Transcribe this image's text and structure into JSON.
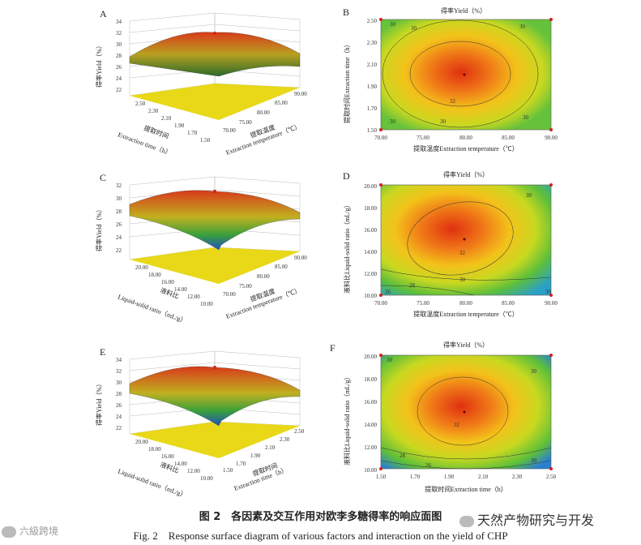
{
  "panels": {
    "A": {
      "label": "A",
      "z_label": "得率Yield（%）",
      "z_ticks": [
        "34",
        "32",
        "30",
        "28",
        "26",
        "24",
        "22"
      ],
      "left_ticks": [
        "2.50",
        "2.30",
        "2.10",
        "1.90",
        "1.70",
        "1.50"
      ],
      "right_ticks": [
        "70.00",
        "75.00",
        "80.00",
        "85.00",
        "90.00"
      ],
      "left_title_cn": "提取时间",
      "left_title_en": "Extraction time（h）",
      "right_title_cn": "提取温度",
      "right_title_en": "Extraction temperature（℃）"
    },
    "B": {
      "label": "B",
      "title": "得率Yield（%）",
      "y_title": "提取时间Extraction time（h）",
      "x_title": "提取温度Extraction temperature（℃）",
      "x_ticks": [
        "70.00",
        "75.00",
        "80.00",
        "85.00",
        "90.00"
      ],
      "y_ticks": [
        "2.50",
        "2.30",
        "2.10",
        "1.90",
        "1.70",
        "1.50"
      ],
      "contour_labels": [
        "30",
        "30",
        "30",
        "30",
        "32",
        "30",
        "30"
      ]
    },
    "C": {
      "label": "C",
      "z_label": "得率Yield（%）",
      "z_ticks": [
        "32",
        "30",
        "28",
        "26",
        "24",
        "22"
      ],
      "left_ticks": [
        "20.00",
        "18.00",
        "16.00",
        "14.00",
        "12.00",
        "10.00"
      ],
      "right_ticks": [
        "70.00",
        "75.00",
        "80.00",
        "85.00",
        "90.00"
      ],
      "left_title_cn": "液料比",
      "left_title_en": "Liquid-solid ratio（mL/g）",
      "right_title_cn": "提取温度",
      "right_title_en": "Extraction temperature（℃）"
    },
    "D": {
      "label": "D",
      "title": "得率Yield（%）",
      "y_title": "液料比Liquid-solid ratio（mL/g）",
      "x_title": "提取温度Extraction temperature（℃）",
      "x_ticks": [
        "70.00",
        "75.00",
        "80.00",
        "85.00",
        "90.00"
      ],
      "y_ticks": [
        "20.00",
        "18.00",
        "16.00",
        "14.00",
        "12.00",
        "10.00"
      ],
      "contour_labels": [
        "30",
        "32",
        "28",
        "30",
        "26",
        "30"
      ]
    },
    "E": {
      "label": "E",
      "z_label": "得率Yield（%）",
      "z_ticks": [
        "34",
        "32",
        "30",
        "28",
        "26",
        "24",
        "22"
      ],
      "left_ticks": [
        "20.00",
        "18.00",
        "16.00",
        "14.00",
        "12.00",
        "10.00"
      ],
      "right_ticks": [
        "1.50",
        "1.70",
        "1.90",
        "2.10",
        "2.30",
        "2.50"
      ],
      "left_title_cn": "液料比",
      "left_title_en": "Liquid-solid ratio（mL/g）",
      "right_title_cn": "提取时间",
      "right_title_en": "Extraction time（h）"
    },
    "F": {
      "label": "F",
      "title": "得率Yield（%）",
      "y_title": "液料比Liquid-solid ratio（mL/g）",
      "x_title": "提取时间Extraction time（h）",
      "x_ticks": [
        "1.50",
        "1.70",
        "1.90",
        "2.10",
        "2.30",
        "2.50"
      ],
      "y_ticks": [
        "20.00",
        "18.00",
        "16.00",
        "14.00",
        "12.00",
        "10.00"
      ],
      "contour_labels": [
        "30",
        "30",
        "32",
        "28",
        "30",
        "26"
      ]
    }
  },
  "caption_cn": "图 2　各因素及交互作用对欧李多糖得率的响应面图",
  "caption_en": "Fig. 2　Response surface diagram of various factors and interaction on the yield of CHP",
  "watermark_left": "六級跨境",
  "watermark_right": "天然产物研究与开发",
  "colors": {
    "yellow": "#e8d818",
    "green": "#5fbf3a",
    "red": "#e03010",
    "orange": "#f08a18"
  }
}
